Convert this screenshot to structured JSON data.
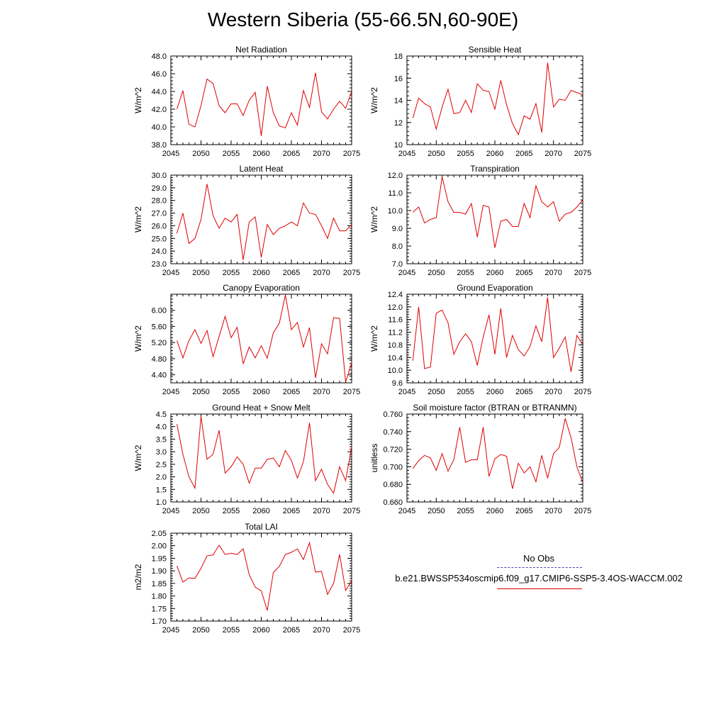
{
  "page": {
    "title": "Western Siberia (55-66.5N,60-90E)"
  },
  "legend": {
    "obs_label": "No Obs",
    "case_label": "b.e21.BWSSP534oscmip6.f09_g17.CMIP6-SSP5-3.4OS-WACCM.002",
    "obs_color": "#4a4ab0",
    "case_color": "#e00000"
  },
  "chart_data": [
    {
      "type": "line",
      "title": "Net Radiation",
      "ylabel": "W/m^2",
      "xlim": [
        2045,
        2075
      ],
      "ylim": [
        38,
        48
      ],
      "xticks": [
        2045,
        2050,
        2055,
        2060,
        2065,
        2070,
        2075
      ],
      "yticks": [
        38,
        40,
        42,
        44,
        46,
        48
      ],
      "ytick_labels": [
        "38.0",
        "40.0",
        "42.0",
        "44.0",
        "46.0",
        "48.0"
      ],
      "x": [
        2046,
        2047,
        2048,
        2049,
        2050,
        2051,
        2052,
        2053,
        2054,
        2055,
        2056,
        2057,
        2058,
        2059,
        2060,
        2061,
        2062,
        2063,
        2064,
        2065,
        2066,
        2067,
        2068,
        2069,
        2070,
        2071,
        2072,
        2073,
        2074,
        2075
      ],
      "series": [
        {
          "values": [
            42.0,
            44.1,
            40.3,
            40.0,
            42.4,
            45.4,
            44.9,
            42.4,
            41.6,
            42.6,
            42.6,
            41.3,
            43.0,
            43.9,
            39.0,
            44.6,
            41.6,
            40.1,
            39.9,
            41.6,
            40.2,
            44.1,
            42.2,
            46.1,
            41.7,
            40.9,
            42.0,
            42.9,
            42.1,
            44.0
          ],
          "color": "#e00000"
        }
      ]
    },
    {
      "type": "line",
      "title": "Sensible Heat",
      "ylabel": "W/m^2",
      "xlim": [
        2045,
        2075
      ],
      "ylim": [
        10,
        18
      ],
      "xticks": [
        2045,
        2050,
        2055,
        2060,
        2065,
        2070,
        2075
      ],
      "yticks": [
        10,
        12,
        14,
        16,
        18
      ],
      "ytick_labels": [
        "10",
        "12",
        "14",
        "16",
        "18"
      ],
      "x": [
        2046,
        2047,
        2048,
        2049,
        2050,
        2051,
        2052,
        2053,
        2054,
        2055,
        2056,
        2057,
        2058,
        2059,
        2060,
        2061,
        2062,
        2063,
        2064,
        2065,
        2066,
        2067,
        2068,
        2069,
        2070,
        2071,
        2072,
        2073,
        2074,
        2075
      ],
      "series": [
        {
          "values": [
            12.4,
            14.2,
            13.7,
            13.4,
            11.4,
            13.4,
            15.0,
            12.8,
            12.9,
            14.0,
            12.9,
            15.5,
            14.9,
            14.8,
            13.2,
            15.8,
            13.6,
            11.9,
            10.9,
            12.6,
            12.3,
            13.7,
            11.1,
            17.4,
            13.4,
            14.1,
            14.0,
            14.9,
            14.7,
            14.5
          ],
          "color": "#e00000"
        }
      ]
    },
    {
      "type": "line",
      "title": "Latent Heat",
      "ylabel": "W/m^2",
      "xlim": [
        2045,
        2075
      ],
      "ylim": [
        23,
        30
      ],
      "xticks": [
        2045,
        2050,
        2055,
        2060,
        2065,
        2070,
        2075
      ],
      "yticks": [
        23,
        24,
        25,
        26,
        27,
        28,
        29,
        30
      ],
      "ytick_labels": [
        "23.0",
        "24.0",
        "25.0",
        "26.0",
        "27.0",
        "28.0",
        "29.0",
        "30.0"
      ],
      "x": [
        2046,
        2047,
        2048,
        2049,
        2050,
        2051,
        2052,
        2053,
        2054,
        2055,
        2056,
        2057,
        2058,
        2059,
        2060,
        2061,
        2062,
        2063,
        2064,
        2065,
        2066,
        2067,
        2068,
        2069,
        2070,
        2071,
        2072,
        2073,
        2074,
        2075
      ],
      "series": [
        {
          "values": [
            25.4,
            27.0,
            24.6,
            25.0,
            26.5,
            29.3,
            26.8,
            25.8,
            26.6,
            26.3,
            26.9,
            23.3,
            26.3,
            26.7,
            23.5,
            26.1,
            25.3,
            25.8,
            26.0,
            26.3,
            26.0,
            27.8,
            27.0,
            26.9,
            26.0,
            25.0,
            26.6,
            25.6,
            25.6,
            26.1
          ],
          "color": "#e00000"
        }
      ]
    },
    {
      "type": "line",
      "title": "Transpiration",
      "ylabel": "W/m^2",
      "xlim": [
        2045,
        2075
      ],
      "ylim": [
        7,
        12
      ],
      "xticks": [
        2045,
        2050,
        2055,
        2060,
        2065,
        2070,
        2075
      ],
      "yticks": [
        7,
        8,
        9,
        10,
        11,
        12
      ],
      "ytick_labels": [
        "7.0",
        "8.0",
        "9.0",
        "10.0",
        "11.0",
        "12.0"
      ],
      "x": [
        2046,
        2047,
        2048,
        2049,
        2050,
        2051,
        2052,
        2053,
        2054,
        2055,
        2056,
        2057,
        2058,
        2059,
        2060,
        2061,
        2062,
        2063,
        2064,
        2065,
        2066,
        2067,
        2068,
        2069,
        2070,
        2071,
        2072,
        2073,
        2074,
        2075
      ],
      "series": [
        {
          "values": [
            9.9,
            10.2,
            9.3,
            9.5,
            9.6,
            11.9,
            10.5,
            9.9,
            9.9,
            9.8,
            10.4,
            8.5,
            10.3,
            10.2,
            7.9,
            9.4,
            9.5,
            9.1,
            9.1,
            10.4,
            9.6,
            11.4,
            10.5,
            10.2,
            10.5,
            9.4,
            9.8,
            9.9,
            10.2,
            10.6
          ],
          "color": "#e00000"
        }
      ]
    },
    {
      "type": "line",
      "title": "Canopy Evaporation",
      "ylabel": "W/m^2",
      "xlim": [
        2045,
        2075
      ],
      "ylim": [
        4.2,
        6.4
      ],
      "xticks": [
        2045,
        2050,
        2055,
        2060,
        2065,
        2070,
        2075
      ],
      "yticks": [
        4.4,
        4.8,
        5.2,
        5.6,
        6.0
      ],
      "ytick_labels": [
        "4.40",
        "4.80",
        "5.20",
        "5.60",
        "6.00"
      ],
      "x": [
        2046,
        2047,
        2048,
        2049,
        2050,
        2051,
        2052,
        2053,
        2054,
        2055,
        2056,
        2057,
        2058,
        2059,
        2060,
        2061,
        2062,
        2063,
        2064,
        2065,
        2066,
        2067,
        2068,
        2069,
        2070,
        2071,
        2072,
        2073,
        2074,
        2075
      ],
      "series": [
        {
          "values": [
            5.25,
            4.82,
            5.25,
            5.52,
            5.18,
            5.5,
            4.85,
            5.35,
            5.85,
            5.32,
            5.58,
            4.67,
            5.09,
            4.82,
            5.12,
            4.81,
            5.44,
            5.68,
            6.38,
            5.52,
            5.7,
            5.09,
            5.57,
            4.32,
            5.17,
            4.92,
            5.82,
            5.8,
            4.22,
            4.7
          ],
          "color": "#e00000"
        }
      ]
    },
    {
      "type": "line",
      "title": "Ground Evaporation",
      "ylabel": "W/m^2",
      "xlim": [
        2045,
        2075
      ],
      "ylim": [
        9.6,
        12.4
      ],
      "xticks": [
        2045,
        2050,
        2055,
        2060,
        2065,
        2070,
        2075
      ],
      "yticks": [
        9.6,
        10.0,
        10.4,
        10.8,
        11.2,
        11.6,
        12.0,
        12.4
      ],
      "ytick_labels": [
        "9.6",
        "10.0",
        "10.4",
        "10.8",
        "11.2",
        "11.6",
        "12.0",
        "12.4"
      ],
      "x": [
        2046,
        2047,
        2048,
        2049,
        2050,
        2051,
        2052,
        2053,
        2054,
        2055,
        2056,
        2057,
        2058,
        2059,
        2060,
        2061,
        2062,
        2063,
        2064,
        2065,
        2066,
        2067,
        2068,
        2069,
        2070,
        2071,
        2072,
        2073,
        2074,
        2075
      ],
      "series": [
        {
          "values": [
            10.3,
            12.0,
            10.05,
            10.1,
            11.8,
            11.9,
            11.5,
            10.5,
            10.9,
            11.15,
            10.9,
            10.15,
            11.05,
            11.75,
            10.5,
            11.95,
            10.4,
            11.1,
            10.65,
            10.45,
            10.75,
            11.4,
            10.9,
            12.3,
            10.4,
            10.7,
            11.05,
            9.95,
            11.1,
            10.8
          ],
          "color": "#e00000"
        }
      ]
    },
    {
      "type": "line",
      "title": "Ground Heat + Snow Melt",
      "ylabel": "W/m^2",
      "xlim": [
        2045,
        2075
      ],
      "ylim": [
        1.0,
        4.5
      ],
      "xticks": [
        2045,
        2050,
        2055,
        2060,
        2065,
        2070,
        2075
      ],
      "yticks": [
        1.0,
        1.5,
        2.0,
        2.5,
        3.0,
        3.5,
        4.0,
        4.5
      ],
      "ytick_labels": [
        "1.0",
        "1.5",
        "2.0",
        "2.5",
        "3.0",
        "3.5",
        "4.0",
        "4.5"
      ],
      "x": [
        2046,
        2047,
        2048,
        2049,
        2050,
        2051,
        2052,
        2053,
        2054,
        2055,
        2056,
        2057,
        2058,
        2059,
        2060,
        2061,
        2062,
        2063,
        2064,
        2065,
        2066,
        2067,
        2068,
        2069,
        2070,
        2071,
        2072,
        2073,
        2074,
        2075
      ],
      "series": [
        {
          "values": [
            4.1,
            2.9,
            2.0,
            1.55,
            4.4,
            2.7,
            2.9,
            3.85,
            2.15,
            2.4,
            2.8,
            2.5,
            1.75,
            2.35,
            2.35,
            2.7,
            2.75,
            2.4,
            3.05,
            2.65,
            1.95,
            2.6,
            4.15,
            1.85,
            2.3,
            1.7,
            1.35,
            2.4,
            1.85,
            3.2
          ],
          "color": "#e00000"
        }
      ]
    },
    {
      "type": "line",
      "title": "Soil moisture factor (BTRAN or BTRANMN)",
      "ylabel": "unitless",
      "xlim": [
        2045,
        2075
      ],
      "ylim": [
        0.66,
        0.76
      ],
      "xticks": [
        2045,
        2050,
        2055,
        2060,
        2065,
        2070,
        2075
      ],
      "yticks": [
        0.66,
        0.68,
        0.7,
        0.72,
        0.74,
        0.76
      ],
      "ytick_labels": [
        "0.660",
        "0.680",
        "0.700",
        "0.720",
        "0.740",
        "0.760"
      ],
      "x": [
        2046,
        2047,
        2048,
        2049,
        2050,
        2051,
        2052,
        2053,
        2054,
        2055,
        2056,
        2057,
        2058,
        2059,
        2060,
        2061,
        2062,
        2063,
        2064,
        2065,
        2066,
        2067,
        2068,
        2069,
        2070,
        2071,
        2072,
        2073,
        2074,
        2075
      ],
      "series": [
        {
          "values": [
            0.698,
            0.707,
            0.713,
            0.71,
            0.696,
            0.715,
            0.695,
            0.708,
            0.745,
            0.705,
            0.708,
            0.708,
            0.745,
            0.689,
            0.709,
            0.714,
            0.712,
            0.675,
            0.704,
            0.693,
            0.7,
            0.683,
            0.713,
            0.687,
            0.715,
            0.722,
            0.755,
            0.733,
            0.7,
            0.682
          ],
          "color": "#e00000"
        }
      ]
    },
    {
      "type": "line",
      "title": "Total LAI",
      "ylabel": "m2/m2",
      "xlim": [
        2045,
        2075
      ],
      "ylim": [
        1.7,
        2.05
      ],
      "xticks": [
        2045,
        2050,
        2055,
        2060,
        2065,
        2070,
        2075
      ],
      "yticks": [
        1.7,
        1.75,
        1.8,
        1.85,
        1.9,
        1.95,
        2.0,
        2.05
      ],
      "ytick_labels": [
        "1.70",
        "1.75",
        "1.80",
        "1.85",
        "1.90",
        "1.95",
        "2.00",
        "2.05"
      ],
      "x": [
        2046,
        2047,
        2048,
        2049,
        2050,
        2051,
        2052,
        2053,
        2054,
        2055,
        2056,
        2057,
        2058,
        2059,
        2060,
        2061,
        2062,
        2063,
        2064,
        2065,
        2066,
        2067,
        2068,
        2069,
        2070,
        2071,
        2072,
        2073,
        2074,
        2075
      ],
      "series": [
        {
          "values": [
            1.92,
            1.855,
            1.872,
            1.87,
            1.91,
            1.96,
            1.963,
            2.002,
            1.965,
            1.97,
            1.965,
            1.988,
            1.885,
            1.835,
            1.82,
            1.742,
            1.893,
            1.918,
            1.965,
            1.974,
            1.987,
            1.945,
            2.012,
            1.895,
            1.898,
            1.806,
            1.85,
            1.965,
            1.822,
            1.86
          ],
          "color": "#e00000"
        }
      ]
    }
  ]
}
